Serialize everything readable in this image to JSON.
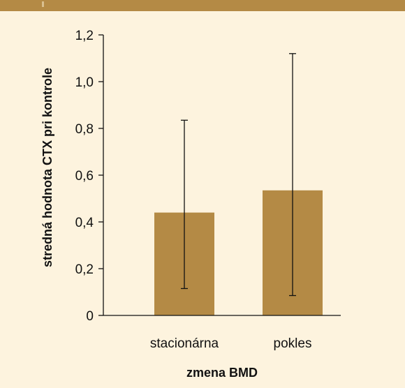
{
  "chart_data": {
    "type": "bar",
    "xlabel": "zmena BMD",
    "ylabel": "stredná hodnota CTX pri kontrole",
    "categories": [
      "stacionárna",
      "pokles"
    ],
    "values": [
      0.44,
      0.535
    ],
    "error_low": [
      0.115,
      0.085
    ],
    "error_high": [
      0.835,
      1.12
    ],
    "ylim": [
      0,
      1.2
    ],
    "yticks": [
      "0",
      "0,2",
      "0,4",
      "0,6",
      "0,8",
      "1,0",
      "1,2"
    ],
    "ytick_values": [
      0,
      0.2,
      0.4,
      0.6,
      0.8,
      1.0,
      1.2
    ],
    "grid": false,
    "bar_color": "#b48a45",
    "background_color": "#fdf3de",
    "header_color": "#b48a45"
  }
}
